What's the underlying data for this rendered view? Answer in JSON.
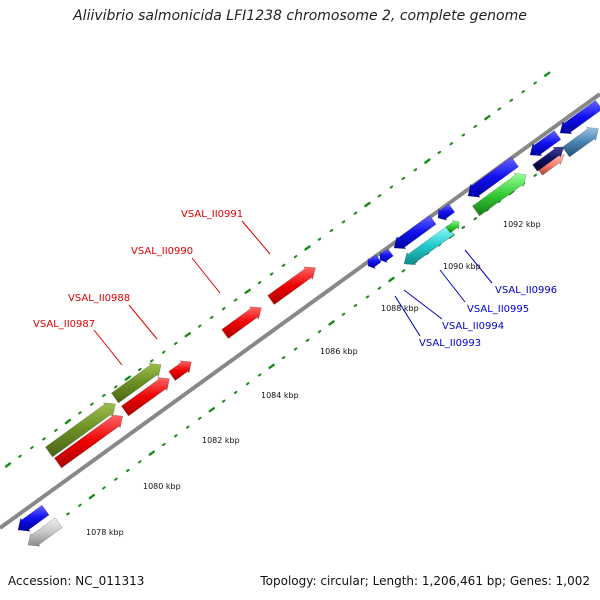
{
  "title": "Aliivibrio salmonicida LFI1238 chromosome 2, complete genome",
  "footer": {
    "accession": "Accession: NC_011313",
    "summary": "Topology: circular; Length: 1,206,461 bp; Genes: 1,002"
  },
  "kbp_labels": [
    "1078 kbp",
    "1080 kbp",
    "1082 kbp",
    "1084 kbp",
    "1086 kbp",
    "1088 kbp",
    "1090 kbp",
    "1092 kbp"
  ],
  "gene_labels_top": [
    "VSAL_II0987",
    "VSAL_II0988",
    "VSAL_II0990",
    "VSAL_II0991"
  ],
  "gene_labels_bottom": [
    "VSAL_II0993",
    "VSAL_II0994",
    "VSAL_II0995",
    "VSAL_II0996"
  ],
  "colors": {
    "red": "#ee0000",
    "olive": "#6b8e23",
    "blue": "#1010ee",
    "cyan": "#22cccc",
    "green": "#33cc33",
    "navy": "#101060",
    "steel": "#4682b4",
    "salmon": "#fa8072",
    "grey": "#c8c8c8",
    "tick": "#1a8a1a",
    "axis": "#888888",
    "label_red": "#dd0000",
    "label_blue": "#0000cc"
  }
}
